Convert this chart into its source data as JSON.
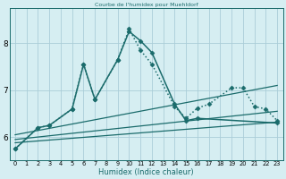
{
  "title": "Courbe de l'humidex pour Muehldorf",
  "xlabel": "Humidex (Indice chaleur)",
  "xlim": [
    -0.5,
    23.5
  ],
  "ylim": [
    5.5,
    8.75
  ],
  "yticks": [
    6,
    7,
    8
  ],
  "bg_color": "#d6eef2",
  "grid_color": "#aacdd8",
  "line_color": "#1a6b6b",
  "lines": [
    {
      "x": [
        0,
        2,
        3,
        5,
        6,
        7,
        9,
        10,
        11,
        12,
        14,
        15,
        16,
        23
      ],
      "y": [
        5.75,
        6.2,
        6.25,
        6.6,
        7.55,
        6.8,
        7.65,
        8.25,
        8.05,
        7.8,
        6.7,
        6.35,
        6.4,
        6.3
      ],
      "style": "-",
      "marker": "D",
      "markersize": 2.5,
      "linewidth": 1.1
    },
    {
      "x": [
        0,
        2,
        3,
        5,
        6,
        7,
        9,
        10,
        11,
        12,
        14,
        15,
        16,
        17,
        19,
        20,
        21,
        22,
        23
      ],
      "y": [
        5.75,
        6.2,
        6.25,
        6.6,
        7.55,
        6.8,
        7.65,
        8.3,
        7.85,
        7.55,
        6.65,
        6.4,
        6.62,
        6.7,
        7.05,
        7.05,
        6.65,
        6.6,
        6.35
      ],
      "style": ":",
      "marker": "D",
      "markersize": 2.5,
      "linewidth": 1.1
    },
    {
      "x": [
        0,
        23
      ],
      "y": [
        6.05,
        7.1
      ],
      "style": "-",
      "marker": null,
      "markersize": 0,
      "linewidth": 0.9
    },
    {
      "x": [
        0,
        23
      ],
      "y": [
        5.95,
        6.55
      ],
      "style": "-",
      "marker": null,
      "markersize": 0,
      "linewidth": 0.9
    },
    {
      "x": [
        0,
        23
      ],
      "y": [
        5.88,
        6.32
      ],
      "style": "-",
      "marker": null,
      "markersize": 0,
      "linewidth": 0.9
    }
  ]
}
